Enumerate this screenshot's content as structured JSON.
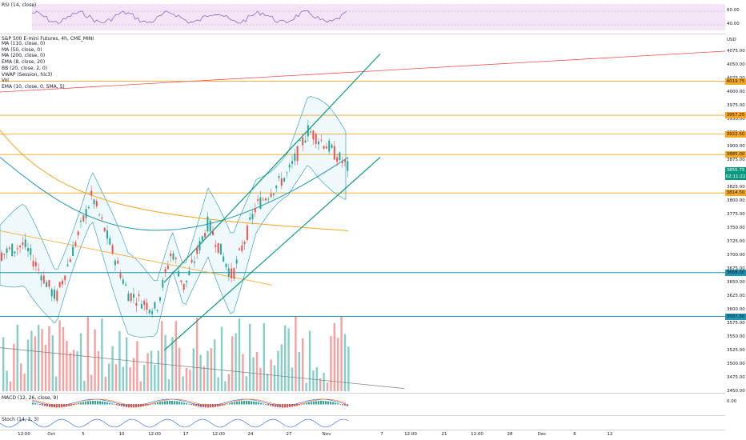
{
  "rsi": {
    "label": "RSI (14, close)",
    "levels": [
      "60.00",
      "40.00"
    ]
  },
  "main": {
    "title": "S&P 500 E-mini Futures, 4h, CME_MINI",
    "currency": "USD",
    "indicators": [
      "MA (110, close, 0)",
      "MA (50, close, 0)",
      "MA (200, close, 0)",
      "EMA (8, close, 20)",
      "BB (20, close, 2, 0)",
      "VWAP (Session, hlc3)",
      "Vol",
      "EMA (10, close, 0, SMA, 5)"
    ],
    "price_ticks": [
      "4075.00",
      "4050.00",
      "4025.00",
      "4000.00",
      "3975.00",
      "3950.00",
      "3925.00",
      "3900.00",
      "3875.00",
      "3850.00",
      "3825.00",
      "3800.00",
      "3775.00",
      "3750.00",
      "3725.00",
      "3700.00",
      "3675.00",
      "3650.00",
      "3625.00",
      "3600.00",
      "3575.00",
      "3550.00",
      "3525.00",
      "3500.00",
      "3475.00",
      "3450.00"
    ],
    "price_badges": [
      {
        "text": "4019.75",
        "color": "#f5a623",
        "kind": "orange"
      },
      {
        "text": "3957.25",
        "color": "#f5a623",
        "kind": "orange"
      },
      {
        "text": "3922.50",
        "color": "#f5a623",
        "kind": "orange"
      },
      {
        "text": "3885.00",
        "color": "#f5a623",
        "kind": "orange"
      },
      {
        "text": "3855.75",
        "color": "#089981",
        "kind": "green"
      },
      {
        "text": "02:11:22",
        "color": "#089981",
        "kind": "green"
      },
      {
        "text": "3814.50",
        "color": "#f5a623",
        "kind": "orange"
      },
      {
        "text": "3668.00",
        "color": "#2196b3",
        "kind": "teal"
      },
      {
        "text": "3587.50",
        "color": "#2196b3",
        "kind": "teal"
      }
    ]
  },
  "macd": {
    "label": "MACD (12, 26, close, 9)",
    "level": "0.00"
  },
  "stoch": {
    "label": "Stoch (14, 3, 3)"
  },
  "time_axis": [
    "12:00",
    "Oct",
    "5",
    "10",
    "12:00",
    "17",
    "12:00",
    "24",
    "27",
    "Nov",
    "7",
    "12:00",
    "21",
    "12:00",
    "28",
    "Dec",
    "6",
    "12"
  ],
  "colors": {
    "up": "#26a69a",
    "down": "#ef5350",
    "ma_orange": "#f5a623",
    "channel": "#089981",
    "bb": "#2196b3"
  }
}
